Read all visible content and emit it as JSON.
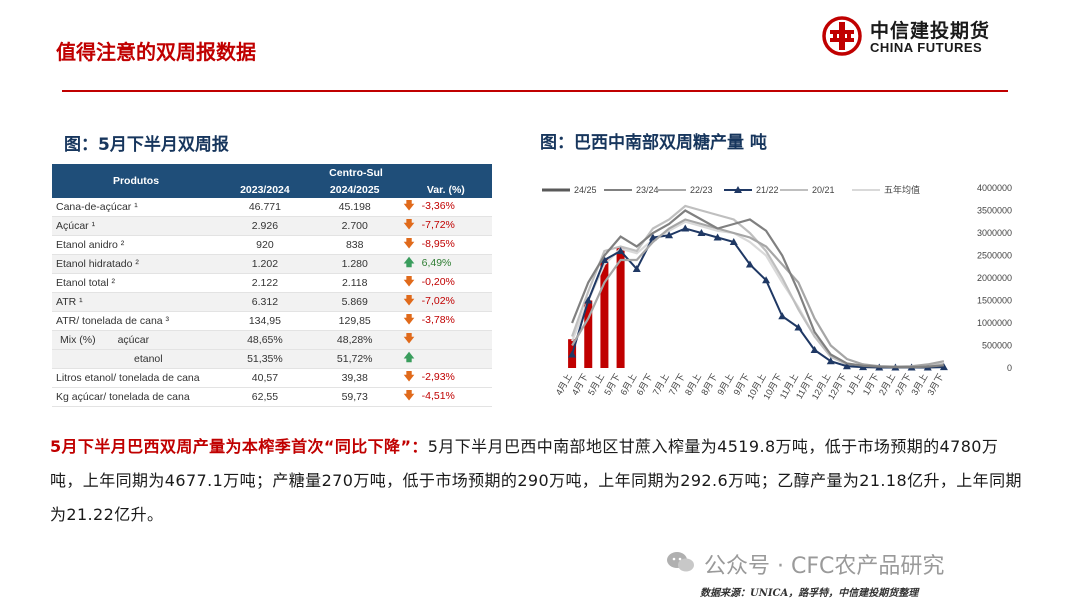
{
  "header": {
    "title": "值得注意的双周报数据",
    "logo": {
      "cn": "中信建投期货",
      "en": "CHINA FUTURES",
      "text": "中信",
      "color": "#c00000"
    },
    "accent_color": "#c00000"
  },
  "left_panel": {
    "title": "图：5月下半月双周报",
    "table": {
      "col_produtos": "Produtos",
      "col_group": "Centro-Sul",
      "col_2023": "2023/2024",
      "col_2024": "2024/2025",
      "col_var": "Var. (%)",
      "rows": [
        {
          "label": "Cana-de-açúcar ¹",
          "v1": "46.771",
          "v2": "45.198",
          "var": "-3,36%",
          "dir": "down"
        },
        {
          "label": "Açúcar ¹",
          "v1": "2.926",
          "v2": "2.700",
          "var": "-7,72%",
          "dir": "down"
        },
        {
          "label": "Etanol anidro ²",
          "v1": "920",
          "v2": "838",
          "var": "-8,95%",
          "dir": "down"
        },
        {
          "label": "Etanol hidratado ²",
          "v1": "1.202",
          "v2": "1.280",
          "var": "6,49%",
          "dir": "up"
        },
        {
          "label": "Etanol total ²",
          "v1": "2.122",
          "v2": "2.118",
          "var": "-0,20%",
          "dir": "down"
        },
        {
          "label": "ATR ¹",
          "v1": "6.312",
          "v2": "5.869",
          "var": "-7,02%",
          "dir": "down"
        },
        {
          "label": "ATR/ tonelada de cana ³",
          "v1": "134,95",
          "v2": "129,85",
          "var": "-3,78%",
          "dir": "down"
        }
      ],
      "mix": {
        "label": "Mix (%)",
        "rows": [
          {
            "label": "açúcar",
            "v1": "48,65%",
            "v2": "48,28%",
            "var": "",
            "dir": "down"
          },
          {
            "label": "etanol",
            "v1": "51,35%",
            "v2": "51,72%",
            "var": "",
            "dir": "up"
          }
        ]
      },
      "rows_after": [
        {
          "label": "Litros etanol/ tonelada de cana",
          "v1": "40,57",
          "v2": "39,38",
          "var": "-2,93%",
          "dir": "down"
        },
        {
          "label": "Kg açúcar/ tonelada de cana",
          "v1": "62,55",
          "v2": "59,73",
          "var": "-4,51%",
          "dir": "down"
        }
      ]
    }
  },
  "right_panel": {
    "title": "图：巴西中南部双周糖产量 吨"
  },
  "chart_data": {
    "type": "line",
    "categories": [
      "4月上",
      "4月下",
      "5月上",
      "5月下",
      "6月上",
      "6月下",
      "7月上",
      "7月下",
      "8月上",
      "8月下",
      "9月上",
      "9月下",
      "10月上",
      "10月下",
      "11月上",
      "11月下",
      "12月上",
      "12月下",
      "1月上",
      "1月下",
      "2月上",
      "2月下",
      "3月上",
      "3月下"
    ],
    "ylim": [
      0,
      4000000
    ],
    "yticks": [
      "0",
      "500000",
      "1000000",
      "1500000",
      "2000000",
      "2500000",
      "3000000",
      "3500000",
      "4000000"
    ],
    "grid": false,
    "legend_position": "top",
    "series": [
      {
        "name": "24/25",
        "kind": "bar",
        "color": "#c00000",
        "values": [
          640000,
          1500000,
          2430000,
          2700000,
          null,
          null,
          null,
          null,
          null,
          null,
          null,
          null,
          null,
          null,
          null,
          null,
          null,
          null,
          null,
          null,
          null,
          null,
          null,
          null
        ]
      },
      {
        "name": "23/24",
        "kind": "line",
        "color": "#808080",
        "values": [
          1000000,
          1900000,
          2500000,
          2920000,
          2700000,
          3000000,
          3200000,
          3500000,
          3300000,
          3100000,
          3200000,
          3300000,
          3050000,
          2500000,
          1700000,
          800000,
          300000,
          100000,
          50000,
          30000,
          20000,
          20000,
          30000,
          60000
        ]
      },
      {
        "name": "22/23",
        "kind": "line",
        "color": "#a6a6a6",
        "values": [
          500000,
          1100000,
          1900000,
          2400000,
          2400000,
          2800000,
          3100000,
          3300000,
          3200000,
          3100000,
          3000000,
          2900000,
          2700000,
          2300000,
          1900000,
          1100000,
          500000,
          200000,
          80000,
          40000,
          30000,
          40000,
          80000,
          150000
        ]
      },
      {
        "name": "21/22",
        "kind": "line",
        "color": "#1f3864",
        "values": [
          300000,
          1500000,
          2400000,
          2600000,
          2200000,
          2900000,
          2950000,
          3100000,
          3000000,
          2900000,
          2800000,
          2300000,
          1950000,
          1150000,
          900000,
          400000,
          150000,
          40000,
          20000,
          10000,
          10000,
          10000,
          10000,
          20000
        ]
      },
      {
        "name": "20/21",
        "kind": "line",
        "color": "#bfbfbf",
        "values": [
          700000,
          1700000,
          2600000,
          2700000,
          2600000,
          3100000,
          3300000,
          3600000,
          3500000,
          3400000,
          3300000,
          3000000,
          2600000,
          2000000,
          1300000,
          700000,
          250000,
          80000,
          30000,
          20000,
          15000,
          20000,
          40000,
          90000
        ]
      },
      {
        "name": "五年均值",
        "kind": "line",
        "color": "#d9d9d9",
        "values": [
          600000,
          1500000,
          2300000,
          2650000,
          2550000,
          2850000,
          3050000,
          3250000,
          3150000,
          3050000,
          3000000,
          2800000,
          2500000,
          1900000,
          1350000,
          700000,
          280000,
          90000,
          40000,
          25000,
          18000,
          22000,
          50000,
          90000
        ]
      }
    ]
  },
  "summary": {
    "highlight": "5月下半月巴西双周产量为本榨季首次“同比下降”：",
    "body": "5月下半月巴西中南部地区甘蔗入榨量为4519.8万吨，低于市场预期的4780万吨，上年同期为4677.1万吨；产糖量270万吨，低于市场预期的290万吨，上年同期为292.6万吨；乙醇产量为21.18亿升，上年同期为21.22亿升。"
  },
  "watermark": {
    "text": "公众号 · CFC农产品研究",
    "icon": "wechat-icon"
  },
  "source": "数据来源：UNICA，路孚特，中信建投期货整理"
}
